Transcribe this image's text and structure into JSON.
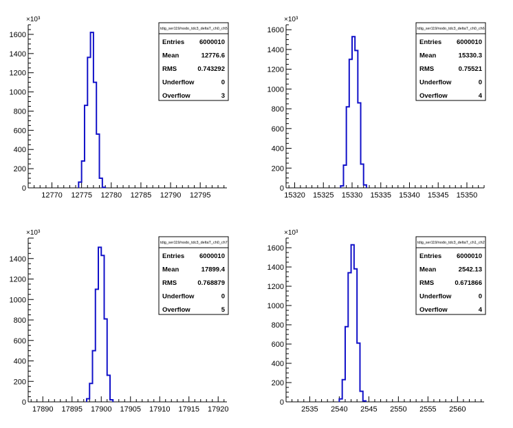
{
  "chart_data": [
    {
      "type": "bar",
      "title": "tdig_ser119/nodo_tdc3_deltaT_ch0_ch5",
      "multiplier_label": "×10³",
      "x_range": [
        12766,
        12799.5
      ],
      "x_ticks": [
        12770,
        12775,
        12780,
        12785,
        12790,
        12795
      ],
      "y_range": [
        0,
        1700
      ],
      "y_ticks": [
        0,
        200,
        400,
        600,
        800,
        1000,
        1200,
        1400,
        1600
      ],
      "bins": [
        {
          "x": 12774.5,
          "y": 60
        },
        {
          "x": 12775,
          "y": 280
        },
        {
          "x": 12775.5,
          "y": 860
        },
        {
          "x": 12776,
          "y": 1360
        },
        {
          "x": 12776.5,
          "y": 1620
        },
        {
          "x": 12777,
          "y": 1100
        },
        {
          "x": 12777.5,
          "y": 560
        },
        {
          "x": 12778,
          "y": 100
        },
        {
          "x": 12778.5,
          "y": 5
        }
      ],
      "stats": [
        {
          "label": "Entries",
          "value": "6000010"
        },
        {
          "label": "Mean",
          "value": "12776.6"
        },
        {
          "label": "RMS",
          "value": "0.743292"
        },
        {
          "label": "Underflow",
          "value": "0"
        },
        {
          "label": "Overflow",
          "value": "3"
        }
      ]
    },
    {
      "type": "bar",
      "title": "tdig_ser119/nodo_tdc3_deltaT_ch0_ch6",
      "multiplier_label": "×10³",
      "x_range": [
        15318.5,
        15353
      ],
      "x_ticks": [
        15320,
        15325,
        15330,
        15335,
        15340,
        15345,
        15350
      ],
      "y_range": [
        0,
        1650
      ],
      "y_ticks": [
        0,
        200,
        400,
        600,
        800,
        1000,
        1200,
        1400,
        1600
      ],
      "bins": [
        {
          "x": 15328,
          "y": 20
        },
        {
          "x": 15328.5,
          "y": 230
        },
        {
          "x": 15329,
          "y": 820
        },
        {
          "x": 15329.5,
          "y": 1300
        },
        {
          "x": 15330,
          "y": 1530
        },
        {
          "x": 15330.5,
          "y": 1390
        },
        {
          "x": 15331,
          "y": 860
        },
        {
          "x": 15331.5,
          "y": 240
        },
        {
          "x": 15332,
          "y": 30
        }
      ],
      "stats": [
        {
          "label": "Entries",
          "value": "6000010"
        },
        {
          "label": "Mean",
          "value": "15330.3"
        },
        {
          "label": "RMS",
          "value": "0.75521"
        },
        {
          "label": "Underflow",
          "value": "0"
        },
        {
          "label": "Overflow",
          "value": "4"
        }
      ]
    },
    {
      "type": "bar",
      "title": "tdig_ser119/nodo_tdc3_deltaT_ch0_ch7",
      "multiplier_label": "×10³",
      "x_range": [
        17887.5,
        17921.5
      ],
      "x_ticks": [
        17890,
        17895,
        17900,
        17905,
        17910,
        17915,
        17920
      ],
      "y_range": [
        0,
        1600
      ],
      "y_ticks": [
        0,
        200,
        400,
        600,
        800,
        1000,
        1200,
        1400
      ],
      "bins": [
        {
          "x": 17897.5,
          "y": 30
        },
        {
          "x": 17898,
          "y": 180
        },
        {
          "x": 17898.5,
          "y": 500
        },
        {
          "x": 17899,
          "y": 1100
        },
        {
          "x": 17899.5,
          "y": 1510
        },
        {
          "x": 17900,
          "y": 1430
        },
        {
          "x": 17900.5,
          "y": 810
        },
        {
          "x": 17901,
          "y": 260
        },
        {
          "x": 17901.5,
          "y": 20
        }
      ],
      "stats": [
        {
          "label": "Entries",
          "value": "6000010"
        },
        {
          "label": "Mean",
          "value": "17899.4"
        },
        {
          "label": "RMS",
          "value": "0.768879"
        },
        {
          "label": "Underflow",
          "value": "0"
        },
        {
          "label": "Overflow",
          "value": "5"
        }
      ]
    },
    {
      "type": "bar",
      "title": "tdig_ser119/nodo_tdc3_deltaT_ch1_ch2",
      "multiplier_label": "×10³",
      "x_range": [
        2531,
        2564.5
      ],
      "x_ticks": [
        2535,
        2540,
        2545,
        2550,
        2555,
        2560
      ],
      "y_range": [
        0,
        1700
      ],
      "y_ticks": [
        0,
        200,
        400,
        600,
        800,
        1000,
        1200,
        1400,
        1600
      ],
      "bins": [
        {
          "x": 2540,
          "y": 30
        },
        {
          "x": 2540.5,
          "y": 230
        },
        {
          "x": 2541,
          "y": 780
        },
        {
          "x": 2541.5,
          "y": 1340
        },
        {
          "x": 2542,
          "y": 1630
        },
        {
          "x": 2542.5,
          "y": 1380
        },
        {
          "x": 2543,
          "y": 610
        },
        {
          "x": 2543.5,
          "y": 110
        },
        {
          "x": 2544,
          "y": 10
        }
      ],
      "stats": [
        {
          "label": "Entries",
          "value": "6000010"
        },
        {
          "label": "Mean",
          "value": "2542.13"
        },
        {
          "label": "RMS",
          "value": "0.671866"
        },
        {
          "label": "Underflow",
          "value": "0"
        },
        {
          "label": "Overflow",
          "value": "4"
        }
      ]
    }
  ]
}
